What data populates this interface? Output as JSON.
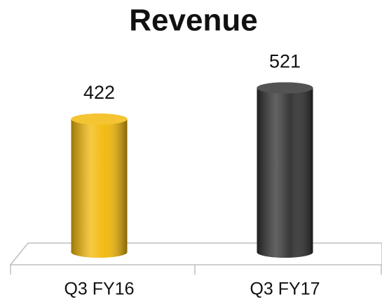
{
  "chart_data": {
    "type": "bar",
    "title": "Revenue",
    "categories": [
      "Q3 FY16",
      "Q3 FY17"
    ],
    "values": [
      422,
      521
    ],
    "colors": [
      "#f2b705",
      "#2e2e2e"
    ],
    "ylim": [
      0,
      600
    ]
  }
}
